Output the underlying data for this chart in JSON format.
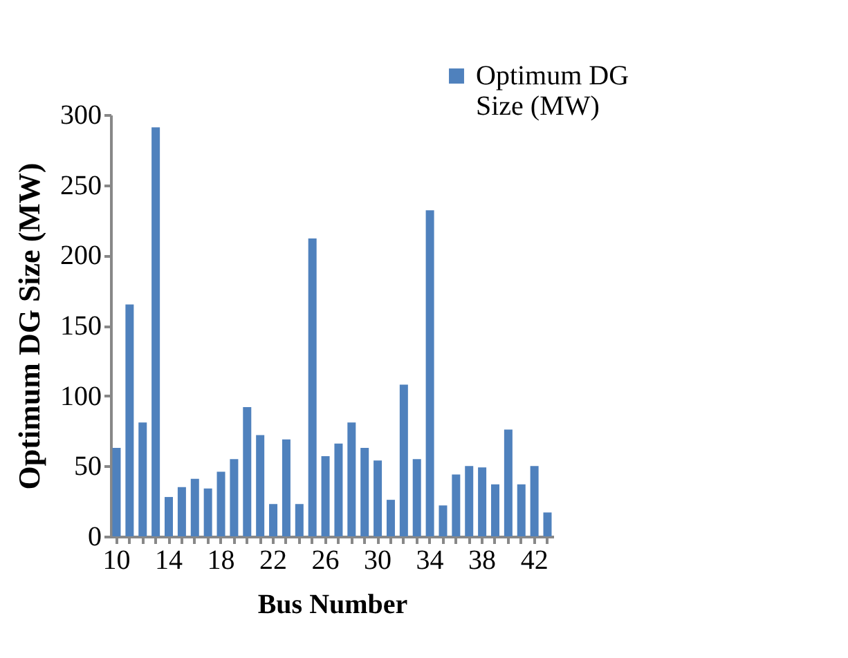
{
  "chart_data": {
    "type": "bar",
    "xlabel": "Bus Number",
    "ylabel": "Optimum DG Size (MW)",
    "categories": [
      "10",
      null,
      null,
      null,
      "14",
      null,
      null,
      null,
      "18",
      null,
      null,
      null,
      "22",
      null,
      null,
      null,
      "26",
      null,
      null,
      null,
      "30",
      null,
      null,
      null,
      "34",
      null,
      null,
      null,
      "38",
      null,
      null,
      null,
      "42",
      null
    ],
    "series": [
      {
        "name": "Optimum DG Size (MW)",
        "color": "#4f81bd",
        "values": [
          63,
          165,
          81,
          291,
          28,
          35,
          41,
          34,
          46,
          55,
          92,
          72,
          23,
          69,
          23,
          212,
          57,
          66,
          81,
          63,
          54,
          26,
          108,
          55,
          232,
          22,
          44,
          50,
          49,
          37,
          76,
          37,
          50,
          17
        ]
      }
    ],
    "ylim": [
      0,
      300
    ],
    "yticks": [
      0,
      50,
      100,
      150,
      200,
      250,
      300
    ],
    "grid": false,
    "legend": "top right"
  }
}
